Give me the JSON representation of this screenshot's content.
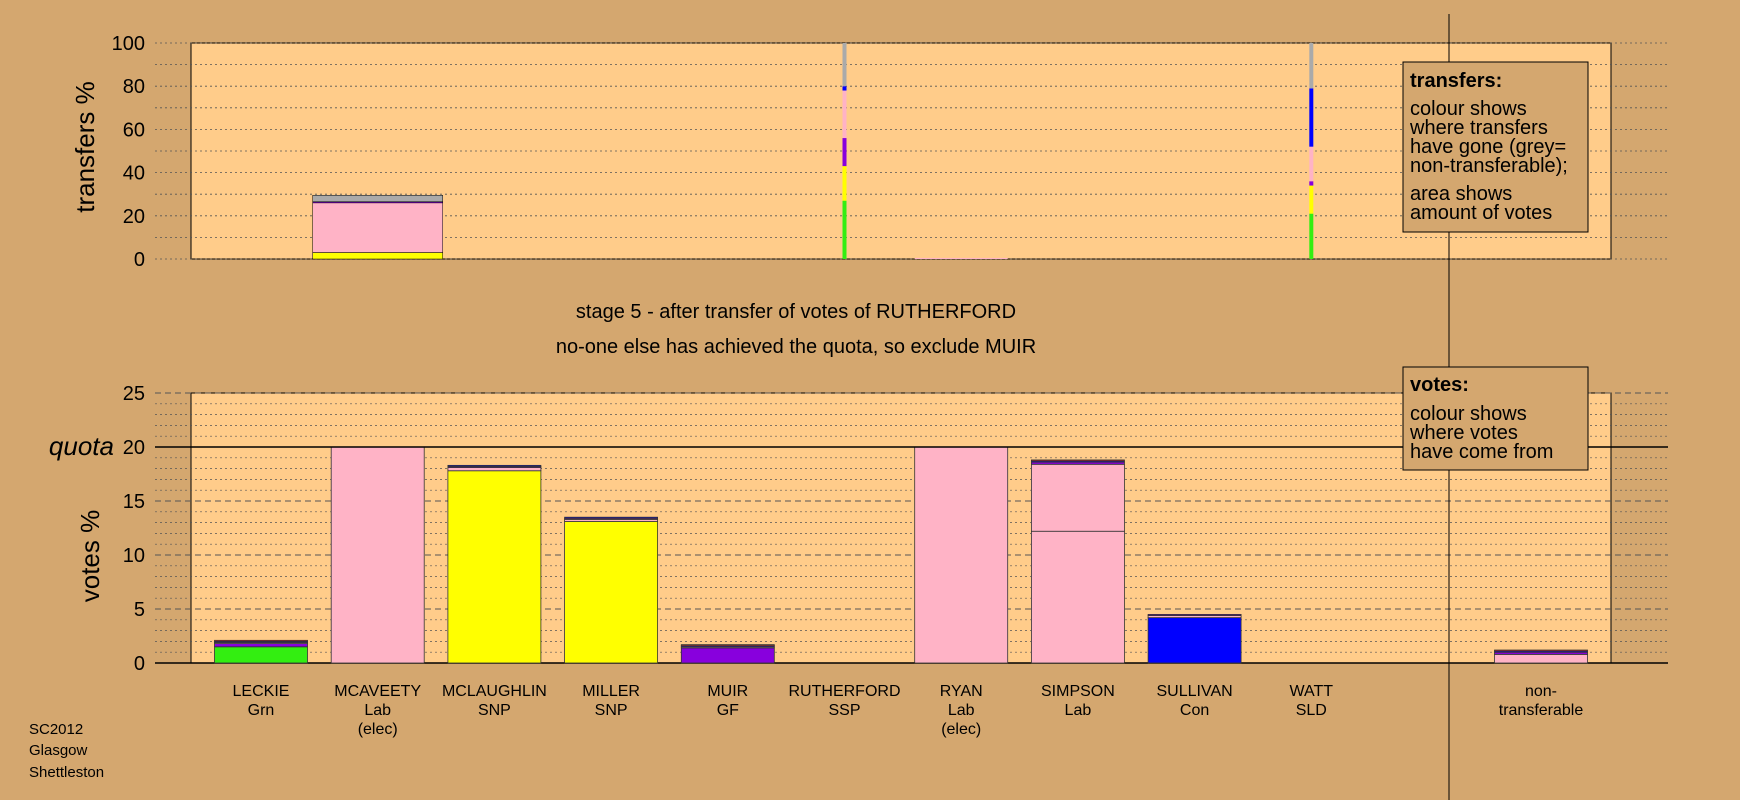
{
  "colors": {
    "background": "#d4a76f",
    "plot_area": "#ffcc8a",
    "SNP": "#ffff00",
    "Lab": "#ffb3c6",
    "Grn": "#33ee11",
    "GF": "#8800dd",
    "Con": "#0000ff",
    "SSP": "#ff2222",
    "SLD": "#ffaa00",
    "non-transferable": "#aaaaaa"
  },
  "titles": {
    "stage": "stage 5 - after transfer of votes of RUTHERFORD",
    "action": "no-one else has achieved the quota, so exclude MUIR"
  },
  "footnote": [
    "SC2012",
    "Glasgow",
    "Shettleston"
  ],
  "legends": {
    "transfers": {
      "heading": "transfers:",
      "lines": [
        "colour shows",
        "where transfers",
        "have gone (grey=",
        "non-transferable);"
      ],
      "lines2": [
        "area shows",
        "amount of votes"
      ]
    },
    "votes": {
      "heading": "votes:",
      "lines": [
        "colour shows",
        "where votes",
        "have come from"
      ]
    }
  },
  "quota_label": "quota",
  "chart_data": [
    {
      "type": "bar",
      "stacked": true,
      "ylabel": "transfers %",
      "ylim": [
        0,
        100
      ],
      "yticks": [
        0,
        20,
        40,
        60,
        80,
        100
      ],
      "grid": "dotted",
      "categories": [
        "LECKIE Grn",
        "MCAVEETY Lab (elec)",
        "MCLAUGHLIN SNP",
        "MILLER SNP",
        "MUIR GF",
        "RUTHERFORD SSP",
        "RYAN Lab (elec)",
        "SIMPSON Lab",
        "SULLIVAN Con",
        "WATT SLD"
      ],
      "bars": [
        {
          "candidate": "MCAVEETY",
          "width": "wide",
          "segments": [
            {
              "to": "SNP",
              "value": 3
            },
            {
              "to": "Lab",
              "value": 23
            },
            {
              "to": "GF",
              "value": 0.5
            },
            {
              "to": "non-transferable",
              "value": 3
            }
          ]
        },
        {
          "candidate": "RUTHERFORD",
          "width": "narrow",
          "segments": [
            {
              "to": "Grn",
              "value": 27
            },
            {
              "to": "SNP",
              "value": 16
            },
            {
              "to": "GF",
              "value": 13
            },
            {
              "to": "Lab",
              "value": 22
            },
            {
              "to": "Con",
              "value": 2
            },
            {
              "to": "non-transferable",
              "value": 20
            }
          ]
        },
        {
          "candidate": "RYAN",
          "width": "flat",
          "segments": [
            {
              "to": "Lab",
              "value": 0.5
            }
          ]
        },
        {
          "candidate": "WATT",
          "width": "narrow",
          "segments": [
            {
              "to": "Grn",
              "value": 21
            },
            {
              "to": "SNP",
              "value": 13
            },
            {
              "to": "GF",
              "value": 2
            },
            {
              "to": "Lab",
              "value": 16
            },
            {
              "to": "Con",
              "value": 27
            },
            {
              "to": "non-transferable",
              "value": 21
            }
          ]
        }
      ]
    },
    {
      "type": "bar",
      "stacked": true,
      "ylabel": "votes %",
      "ylim": [
        0,
        25
      ],
      "yticks": [
        0,
        5,
        10,
        15,
        20,
        25
      ],
      "quota": 20,
      "grid": "dashed",
      "candidates": [
        {
          "name": "LECKIE",
          "party": "Grn",
          "note": "",
          "segments": [
            {
              "from": "Grn",
              "value": 1.5
            },
            {
              "from": "GF",
              "value": 0.3
            },
            {
              "from": "Lab",
              "value": 0.1
            },
            {
              "from": "Con",
              "value": 0.1
            },
            {
              "from": "SSP",
              "value": 0.1
            }
          ]
        },
        {
          "name": "MCAVEETY",
          "party": "Lab",
          "note": "(elec)",
          "segments": [
            {
              "from": "Lab",
              "value": 20
            }
          ]
        },
        {
          "name": "MCLAUGHLIN",
          "party": "SNP",
          "note": "",
          "segments": [
            {
              "from": "SNP",
              "value": 17.8
            },
            {
              "from": "Lab",
              "value": 0.3
            },
            {
              "from": "GF",
              "value": 0.1
            },
            {
              "from": "Con",
              "value": 0.1
            }
          ]
        },
        {
          "name": "MILLER",
          "party": "SNP",
          "note": "",
          "segments": [
            {
              "from": "SNP",
              "value": 13.1
            },
            {
              "from": "Lab",
              "value": 0.2
            },
            {
              "from": "GF",
              "value": 0.1
            },
            {
              "from": "Con",
              "value": 0.1
            }
          ]
        },
        {
          "name": "MUIR",
          "party": "GF",
          "note": "",
          "segments": [
            {
              "from": "GF",
              "value": 1.4
            },
            {
              "from": "Lab",
              "value": 0.1
            },
            {
              "from": "Con",
              "value": 0.1
            },
            {
              "from": "SSP",
              "value": 0.1
            }
          ]
        },
        {
          "name": "RUTHERFORD",
          "party": "SSP",
          "note": "",
          "segments": []
        },
        {
          "name": "RYAN",
          "party": "Lab",
          "note": "(elec)",
          "segments": [
            {
              "from": "Lab",
              "value": 20
            }
          ]
        },
        {
          "name": "SIMPSON",
          "party": "Lab",
          "note": "",
          "segments": [
            {
              "from": "Lab",
              "value": 12.2
            },
            {
              "from": "Lab",
              "value": 6.2
            },
            {
              "from": "GF",
              "value": 0.2
            },
            {
              "from": "Con",
              "value": 0.1
            },
            {
              "from": "SSP",
              "value": 0.1
            }
          ]
        },
        {
          "name": "SULLIVAN",
          "party": "Con",
          "note": "",
          "segments": [
            {
              "from": "Con",
              "value": 4.2
            },
            {
              "from": "Lab",
              "value": 0.2
            },
            {
              "from": "GF",
              "value": 0.1
            }
          ]
        },
        {
          "name": "WATT",
          "party": "SLD",
          "note": "",
          "segments": []
        }
      ],
      "non_transferable": {
        "label1": "non-",
        "label2": "transferable",
        "segments": [
          {
            "from": "Lab",
            "value": 0.8
          },
          {
            "from": "GF",
            "value": 0.2
          },
          {
            "from": "Con",
            "value": 0.1
          },
          {
            "from": "SSP",
            "value": 0.1
          }
        ]
      }
    }
  ]
}
